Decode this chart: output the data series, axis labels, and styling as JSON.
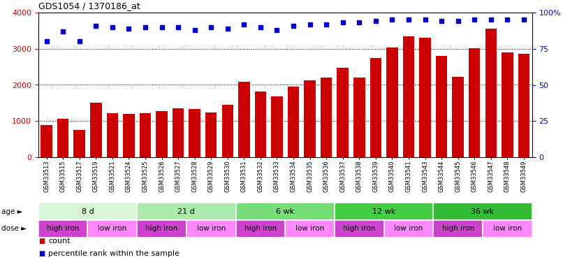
{
  "title": "GDS1054 / 1370186_at",
  "samples": [
    "GSM33513",
    "GSM33515",
    "GSM33517",
    "GSM33519",
    "GSM33521",
    "GSM33524",
    "GSM33525",
    "GSM33526",
    "GSM33527",
    "GSM33528",
    "GSM33529",
    "GSM33530",
    "GSM33531",
    "GSM33532",
    "GSM33533",
    "GSM33534",
    "GSM33535",
    "GSM33536",
    "GSM33537",
    "GSM33538",
    "GSM33539",
    "GSM33540",
    "GSM33541",
    "GSM33543",
    "GSM33544",
    "GSM33545",
    "GSM33546",
    "GSM33547",
    "GSM33548",
    "GSM33549"
  ],
  "counts": [
    880,
    1060,
    760,
    1500,
    1220,
    1200,
    1220,
    1280,
    1350,
    1340,
    1240,
    1440,
    2090,
    1820,
    1680,
    1950,
    2120,
    2210,
    2480,
    2210,
    2740,
    3040,
    3350,
    3300,
    2800,
    2220,
    3020,
    3560,
    2900,
    2860
  ],
  "percentile_ranks": [
    80,
    87,
    80,
    91,
    90,
    89,
    90,
    90,
    90,
    88,
    90,
    89,
    92,
    90,
    88,
    91,
    92,
    92,
    93,
    93,
    94,
    95,
    95,
    95,
    94,
    94,
    95,
    95,
    95,
    95
  ],
  "bar_color": "#cc0000",
  "dot_color": "#0000cc",
  "left_ylim": [
    0,
    4000
  ],
  "right_ylim": [
    0,
    100
  ],
  "left_yticks": [
    0,
    1000,
    2000,
    3000,
    4000
  ],
  "right_yticks": [
    0,
    25,
    50,
    75,
    100
  ],
  "right_yticklabels": [
    "0",
    "25",
    "50",
    "75",
    "100%"
  ],
  "age_groups": [
    {
      "label": "8 d",
      "start": 0,
      "end": 6,
      "color": "#d6f5d6"
    },
    {
      "label": "21 d",
      "start": 6,
      "end": 12,
      "color": "#aaeaaa"
    },
    {
      "label": "6 wk",
      "start": 12,
      "end": 18,
      "color": "#77dd77"
    },
    {
      "label": "12 wk",
      "start": 18,
      "end": 24,
      "color": "#44cc44"
    },
    {
      "label": "36 wk",
      "start": 24,
      "end": 30,
      "color": "#33bb33"
    }
  ],
  "dose_groups": [
    {
      "label": "high iron",
      "start": 0,
      "end": 3,
      "color": "#cc44cc"
    },
    {
      "label": "low iron",
      "start": 3,
      "end": 6,
      "color": "#ff88ff"
    },
    {
      "label": "high iron",
      "start": 6,
      "end": 9,
      "color": "#cc44cc"
    },
    {
      "label": "low iron",
      "start": 9,
      "end": 12,
      "color": "#ff88ff"
    },
    {
      "label": "high iron",
      "start": 12,
      "end": 15,
      "color": "#cc44cc"
    },
    {
      "label": "low iron",
      "start": 15,
      "end": 18,
      "color": "#ff88ff"
    },
    {
      "label": "high iron",
      "start": 18,
      "end": 21,
      "color": "#cc44cc"
    },
    {
      "label": "low iron",
      "start": 21,
      "end": 24,
      "color": "#ff88ff"
    },
    {
      "label": "high iron",
      "start": 24,
      "end": 27,
      "color": "#cc44cc"
    },
    {
      "label": "low iron",
      "start": 27,
      "end": 30,
      "color": "#ff88ff"
    }
  ],
  "bg_color": "#ffffff",
  "tick_label_color_left": "#cc0000",
  "tick_label_color_right": "#0000cc"
}
